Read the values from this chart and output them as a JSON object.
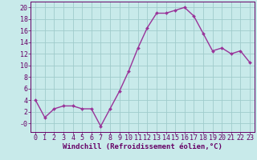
{
  "x": [
    0,
    1,
    2,
    3,
    4,
    5,
    6,
    7,
    8,
    9,
    10,
    11,
    12,
    13,
    14,
    15,
    16,
    17,
    18,
    19,
    20,
    21,
    22,
    23
  ],
  "y": [
    4,
    1,
    2.5,
    3,
    3,
    2.5,
    2.5,
    -0.5,
    2.5,
    5.5,
    9,
    13,
    16.5,
    19,
    19,
    19.5,
    20,
    18.5,
    15.5,
    12.5,
    13,
    12,
    12.5,
    10.5
  ],
  "line_color": "#993399",
  "marker": "D",
  "marker_size": 2.0,
  "bg_color": "#c8eaea",
  "grid_color": "#a0cccc",
  "xlabel": "Windchill (Refroidissement éolien,°C)",
  "xlim": [
    -0.5,
    23.5
  ],
  "ylim": [
    -1.5,
    21
  ],
  "yticks": [
    0,
    2,
    4,
    6,
    8,
    10,
    12,
    14,
    16,
    18,
    20
  ],
  "xticks": [
    0,
    1,
    2,
    3,
    4,
    5,
    6,
    7,
    8,
    9,
    10,
    11,
    12,
    13,
    14,
    15,
    16,
    17,
    18,
    19,
    20,
    21,
    22,
    23
  ],
  "xtick_labels": [
    "0",
    "1",
    "2",
    "3",
    "4",
    "5",
    "6",
    "7",
    "8",
    "9",
    "10",
    "11",
    "12",
    "13",
    "14",
    "15",
    "16",
    "17",
    "18",
    "19",
    "20",
    "21",
    "22",
    "23"
  ],
  "ytick_labels": [
    "-0",
    "2",
    "4",
    "6",
    "8",
    "10",
    "12",
    "14",
    "16",
    "18",
    "20"
  ],
  "label_color": "#660066",
  "tick_color": "#660066",
  "axis_color": "#660066",
  "xlabel_fontsize": 6.5,
  "tick_fontsize": 6.0,
  "line_width": 1.0
}
